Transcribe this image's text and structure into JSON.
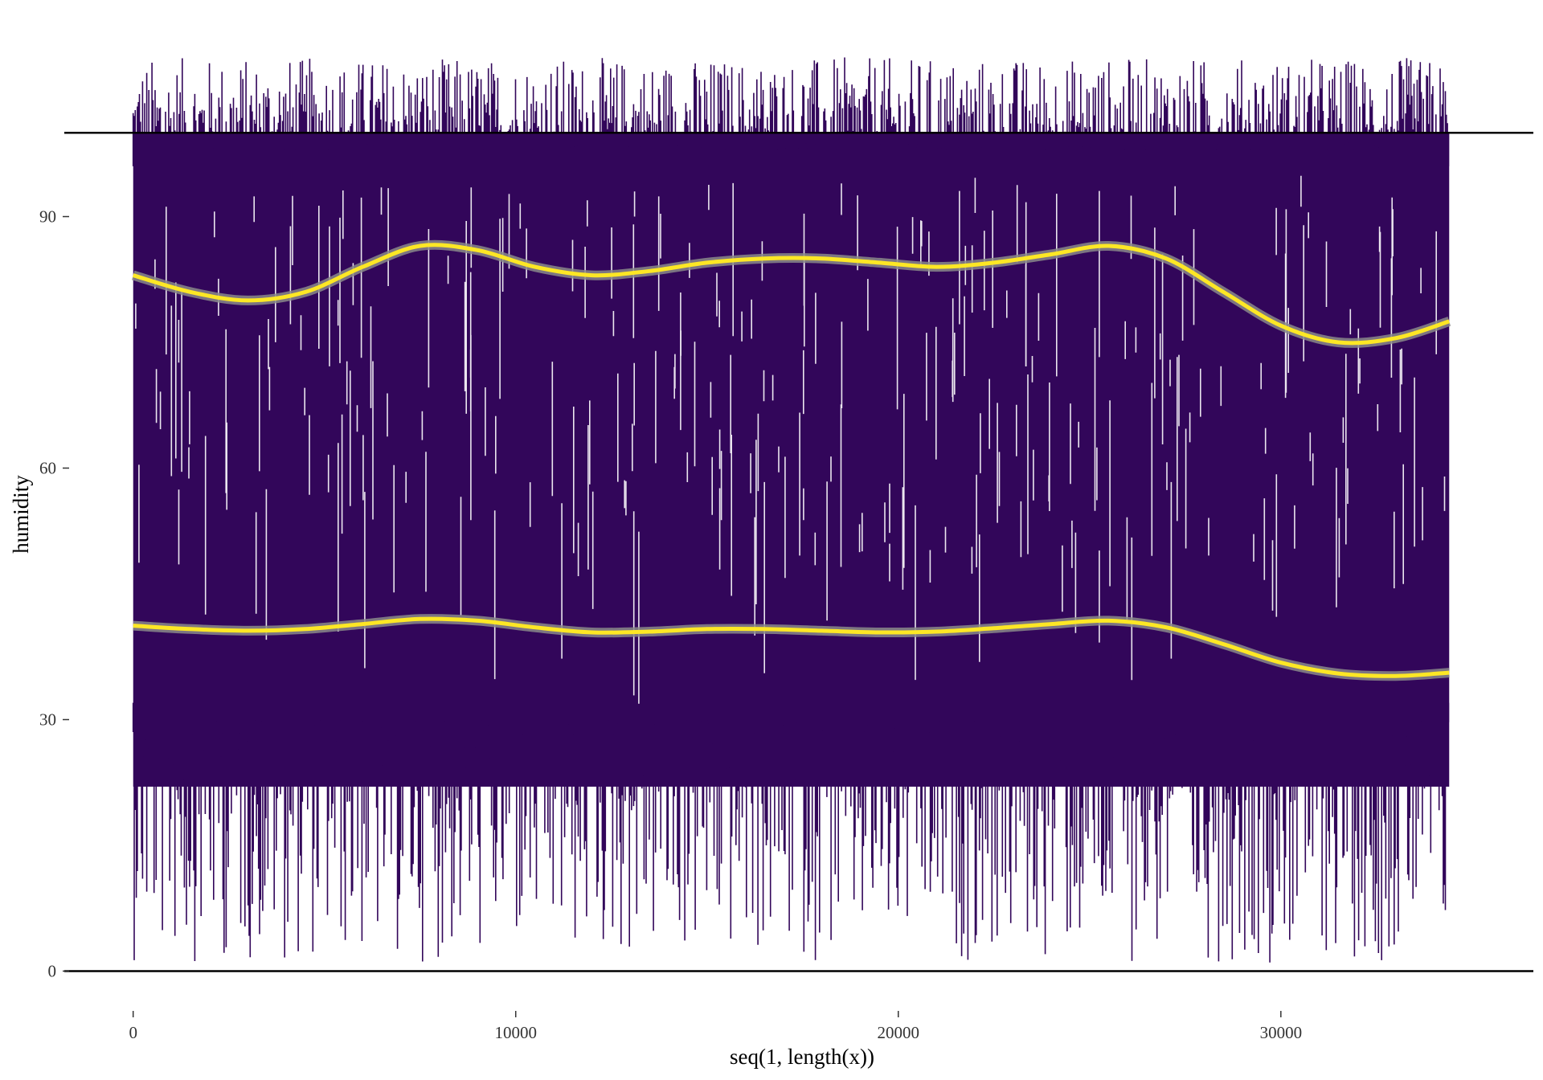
{
  "chart_data": {
    "type": "line",
    "title": "",
    "xlabel": "seq(1, length(x))",
    "ylabel": "humidity",
    "xlim": [
      -1800,
      36600
    ],
    "ylim": [
      -3.5,
      112
    ],
    "x_ticks": [
      0,
      10000,
      20000,
      30000
    ],
    "x_tick_labels": [
      "0",
      "10000",
      "20000",
      "30000"
    ],
    "y_ticks": [
      0,
      30,
      60,
      90
    ],
    "y_tick_labels": [
      "0",
      "30",
      "60",
      "90"
    ],
    "reference_lines": [
      0,
      100
    ],
    "grid": false,
    "legend": "none",
    "raw_series": {
      "x_range": [
        1,
        34400
      ],
      "typical_band": [
        22,
        100
      ],
      "max_spikes": 109,
      "min_spikes": 1,
      "color": "#32065a"
    },
    "smooth_series": [
      {
        "x": [
          0,
          1500,
          3000,
          4500,
          6000,
          7500,
          9000,
          10500,
          12000,
          13500,
          15000,
          16500,
          18000,
          19500,
          21000,
          22500,
          24000,
          25500,
          27000,
          28500,
          30000,
          31500,
          33000,
          34400
        ],
        "values": [
          83,
          81,
          80,
          81,
          84,
          86.5,
          86,
          84,
          83,
          83.5,
          84.5,
          85,
          85,
          84.5,
          84,
          84.5,
          85.5,
          86.5,
          85,
          81,
          77,
          75,
          75.5,
          77.5
        ]
      },
      {
        "x": [
          0,
          1500,
          3000,
          4500,
          6000,
          7500,
          9000,
          10500,
          12000,
          13500,
          15000,
          16500,
          18000,
          19500,
          21000,
          22500,
          24000,
          25500,
          27000,
          28500,
          30000,
          31500,
          33000,
          34400
        ],
        "values": [
          41.2,
          40.8,
          40.6,
          40.8,
          41.4,
          42,
          41.8,
          41,
          40.4,
          40.5,
          40.8,
          40.8,
          40.6,
          40.4,
          40.5,
          40.9,
          41.4,
          41.8,
          41,
          39,
          36.8,
          35.5,
          35.2,
          35.6
        ]
      }
    ],
    "colors": {
      "raw": "#32065a",
      "smooth": "#fde725",
      "ribbon": "#8a8a8a",
      "reference_line": "#000000"
    }
  }
}
